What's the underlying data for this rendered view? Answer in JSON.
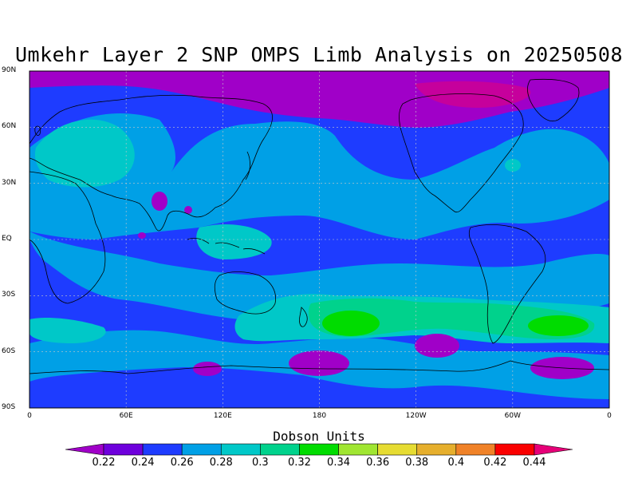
{
  "title": "Umkehr Layer 2 SNP OMPS Limb Analysis on 20250508",
  "units_label": "Dobson Units",
  "lat_ticks": [
    "90N",
    "60N",
    "30N",
    "EQ",
    "30S",
    "60S",
    "90S"
  ],
  "lon_ticks": [
    "0",
    "60E",
    "120E",
    "180",
    "120W",
    "60W",
    "0"
  ],
  "colorbar": {
    "labels": [
      "0.22",
      "0.24",
      "0.26",
      "0.28",
      "0.3",
      "0.32",
      "0.34",
      "0.36",
      "0.38",
      "0.4",
      "0.42",
      "0.44"
    ],
    "colors": [
      "#a000c8",
      "#6e00dc",
      "#1e3cff",
      "#00a0e6",
      "#00c8c8",
      "#00d28c",
      "#00dc00",
      "#a0e632",
      "#e6dc32",
      "#e6af2d",
      "#f08228",
      "#fa0000",
      "#e60078"
    ]
  },
  "map_colors": {
    "background": "#1e3cff",
    "level_026": "#00a0e6",
    "level_028": "#00c8c8",
    "level_032": "#00d28c",
    "level_034": "#00dc00",
    "level_022": "#a000c8",
    "level_020": "#e60078",
    "level_024b": "#6e00dc"
  },
  "chart_data": {
    "type": "heatmap",
    "title": "Umkehr Layer 2 SNP OMPS Limb Analysis on 20250508",
    "colorbar_label": "Dobson Units",
    "levels": [
      0.22,
      0.24,
      0.26,
      0.28,
      0.3,
      0.32,
      0.34,
      0.36,
      0.38,
      0.4,
      0.42,
      0.44
    ],
    "xlim": [
      0,
      360
    ],
    "ylim": [
      -90,
      90
    ],
    "x_ticks": [
      "0",
      "60E",
      "120E",
      "180",
      "120W",
      "60W",
      "0"
    ],
    "y_ticks": [
      "90N",
      "60N",
      "30N",
      "EQ",
      "30S",
      "60S",
      "90S"
    ],
    "grid": true
  }
}
